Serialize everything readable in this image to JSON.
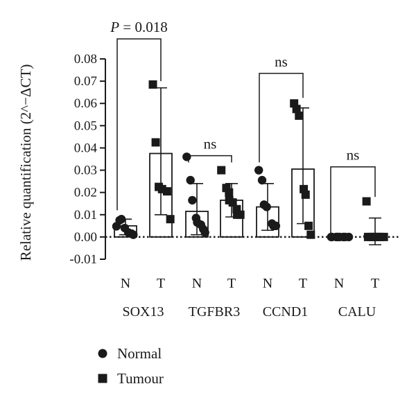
{
  "chart_data": {
    "type": "bar",
    "ylabel": "Relative quantification (2^−ΔCT)",
    "ylim": [
      -0.01,
      0.08
    ],
    "yticks": [
      "-0.01",
      "0.00",
      "0.01",
      "0.02",
      "0.03",
      "0.04",
      "0.05",
      "0.06",
      "0.07",
      "0.08"
    ],
    "genes": [
      "SOX13",
      "TGFBR3",
      "CCND1",
      "CALU"
    ],
    "groups": [
      {
        "gene": "SOX13",
        "label": "N",
        "series": "Normal",
        "mean": 0.005,
        "sd_low": 0.001,
        "sd_high": 0.008,
        "points": [
          0.0048,
          0.0075,
          0.008,
          0.004,
          0.002,
          0.0015,
          0.001
        ]
      },
      {
        "gene": "SOX13",
        "label": "T",
        "series": "Tumour",
        "mean": 0.0375,
        "sd_low": 0.01,
        "sd_high": 0.067,
        "points": [
          0.0685,
          0.0425,
          0.0225,
          0.0215,
          0.0205,
          0.008
        ]
      },
      {
        "gene": "TGFBR3",
        "label": "N",
        "series": "Normal",
        "mean": 0.0115,
        "sd_low": 0.001,
        "sd_high": 0.024,
        "points": [
          0.036,
          0.0255,
          0.0165,
          0.0085,
          0.0065,
          0.0055,
          0.0035,
          0.002
        ]
      },
      {
        "gene": "TGFBR3",
        "label": "T",
        "series": "Tumour",
        "mean": 0.0165,
        "sd_low": 0.009,
        "sd_high": 0.024,
        "points": [
          0.03,
          0.022,
          0.02,
          0.0165,
          0.0155,
          0.0125,
          0.01,
          0.01
        ]
      },
      {
        "gene": "CCND1",
        "label": "N",
        "series": "Normal",
        "mean": 0.0135,
        "sd_low": 0.003,
        "sd_high": 0.024,
        "points": [
          0.03,
          0.0255,
          0.0145,
          0.0135,
          0.006,
          0.005,
          0.005
        ]
      },
      {
        "gene": "CCND1",
        "label": "T",
        "series": "Tumour",
        "mean": 0.0305,
        "sd_low": 0.006,
        "sd_high": 0.058,
        "points": [
          0.06,
          0.0575,
          0.0545,
          0.0215,
          0.019,
          0.005,
          0.001
        ]
      },
      {
        "gene": "CALU",
        "label": "N",
        "series": "Normal",
        "mean": 0.0,
        "sd_low": 0.0,
        "sd_high": 0.0,
        "points": [
          0,
          0,
          0,
          0,
          0,
          0,
          0,
          0
        ]
      },
      {
        "gene": "CALU",
        "label": "T",
        "series": "Tumour",
        "mean": 0.0005,
        "sd_low": -0.0035,
        "sd_high": 0.0085,
        "points": [
          0.016,
          0,
          0,
          0,
          0,
          0,
          0
        ]
      }
    ],
    "comparisons": [
      {
        "gene": "SOX13",
        "text": "P = 0.018",
        "bracket_y": 0.089,
        "left_drop": 0.012,
        "right_drop": 0.07
      },
      {
        "gene": "TGFBR3",
        "text": "ns",
        "bracket_y": 0.0365,
        "left_drop": 0.0335,
        "right_drop": 0.0335
      },
      {
        "gene": "CCND1",
        "text": "ns",
        "bracket_y": 0.0735,
        "left_drop": 0.0335,
        "right_drop": 0.0625
      },
      {
        "gene": "CALU",
        "text": "ns",
        "bracket_y": 0.0315,
        "left_drop": 0.0015,
        "right_drop": 0.018
      }
    ],
    "legend": [
      {
        "marker": "circle",
        "label": "Normal"
      },
      {
        "marker": "square",
        "label": "Tumour"
      }
    ],
    "legend_position": "bottom-left",
    "colors": {
      "marks": "#1a1a1a",
      "bar_fill": "#ffffff"
    }
  }
}
